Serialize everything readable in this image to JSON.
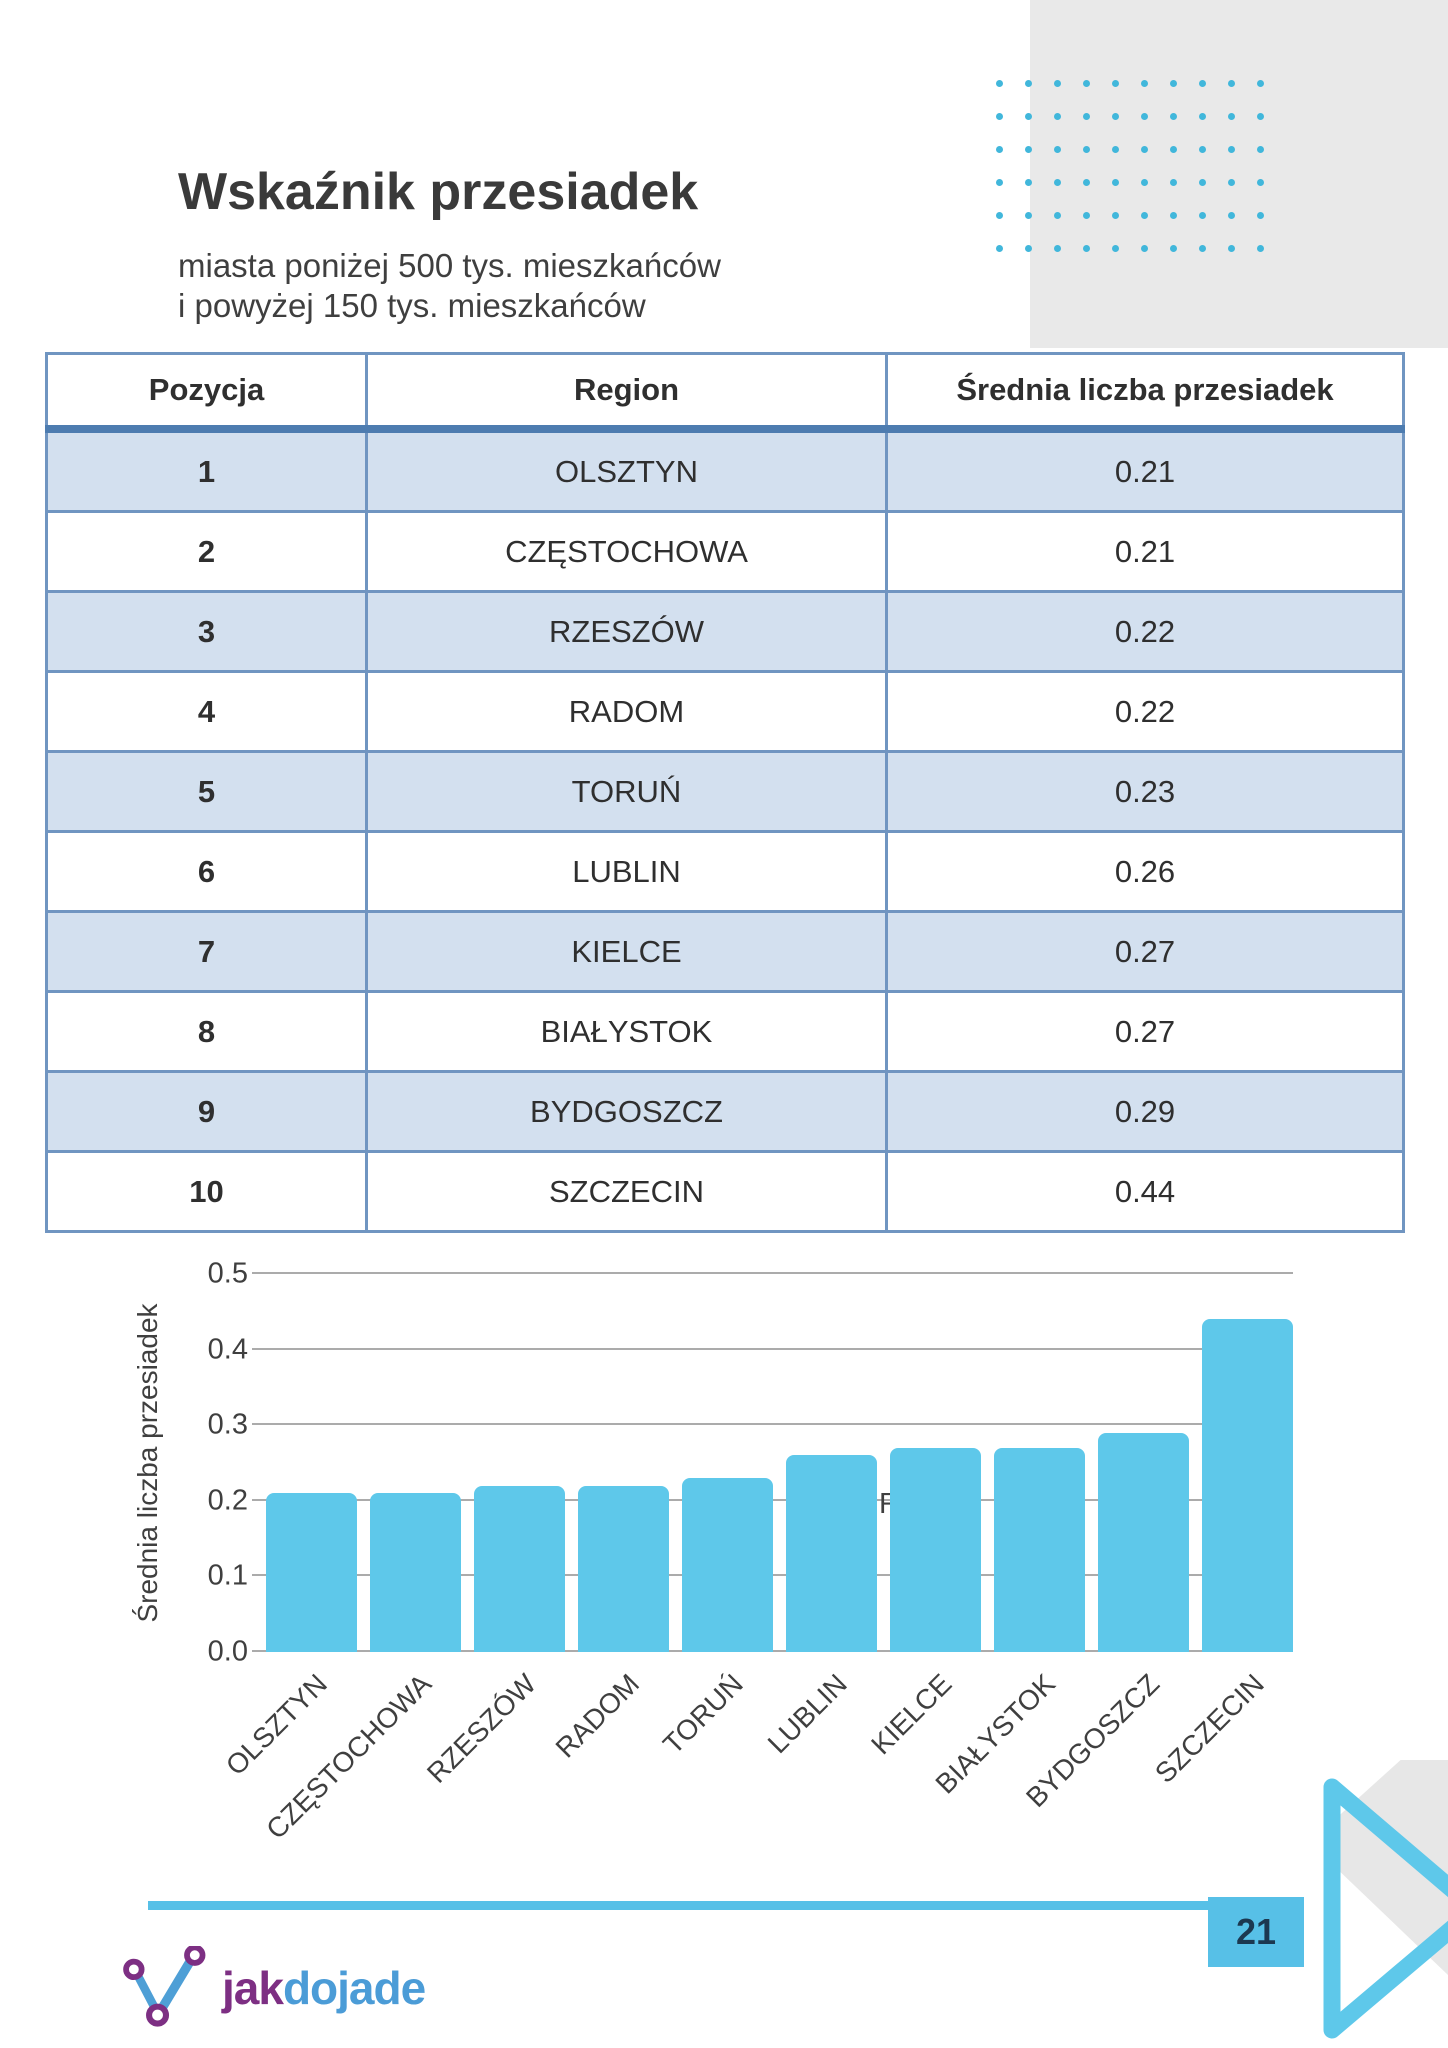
{
  "header": {
    "title": "Wskaźnik przesiadek",
    "subtitle_line1": "miasta poniżej 500 tys. mieszkańców",
    "subtitle_line2": "i powyżej 150 tys. mieszkańców"
  },
  "table": {
    "columns": [
      "Pozycja",
      "Region",
      "Średnia liczba przesiadek"
    ],
    "rows": [
      {
        "pozycja": "1",
        "region": "OLSZTYN",
        "value": "0.21"
      },
      {
        "pozycja": "2",
        "region": "CZĘSTOCHOWA",
        "value": "0.21"
      },
      {
        "pozycja": "3",
        "region": "RZESZÓW",
        "value": "0.22"
      },
      {
        "pozycja": "4",
        "region": "RADOM",
        "value": "0.22"
      },
      {
        "pozycja": "5",
        "region": "TORUŃ",
        "value": "0.23"
      },
      {
        "pozycja": "6",
        "region": "LUBLIN",
        "value": "0.26"
      },
      {
        "pozycja": "7",
        "region": "KIELCE",
        "value": "0.27"
      },
      {
        "pozycja": "8",
        "region": "BIAŁYSTOK",
        "value": "0.27"
      },
      {
        "pozycja": "9",
        "region": "BYDGOSZCZ",
        "value": "0.29"
      },
      {
        "pozycja": "10",
        "region": "SZCZECIN",
        "value": "0.44"
      }
    ]
  },
  "chart_data": {
    "type": "bar",
    "categories": [
      "OLSZTYN",
      "CZĘSTOCHOWA",
      "RZESZÓW",
      "RADOM",
      "TORUŃ",
      "LUBLIN",
      "KIELCE",
      "BIAŁYSTOK",
      "BYDGOSZCZ",
      "SZCZECIN"
    ],
    "values": [
      0.21,
      0.21,
      0.22,
      0.22,
      0.23,
      0.26,
      0.27,
      0.27,
      0.29,
      0.44
    ],
    "title": "",
    "xlabel": "Region",
    "ylabel": "Średnia liczba przesiadek",
    "ylim": [
      0,
      0.5
    ],
    "yticks": [
      "0.0",
      "0.1",
      "0.2",
      "0.3",
      "0.4",
      "0.5"
    ],
    "grid": true,
    "legend": "none",
    "bar_color": "#5ec8ea",
    "gridline_color": "#ababab"
  },
  "footer": {
    "page_number": "21",
    "logo_jak": "jak",
    "logo_dojade": "dojade"
  },
  "colors": {
    "accent_cyan": "#57c0e7",
    "bar_cyan": "#5ec8ea",
    "dots_cyan": "#41b7db",
    "gray_block": "#e9e9e9",
    "table_border": "#7095c1",
    "table_header_border": "#4d7cb0",
    "table_row_alt": "#d3e0ef",
    "page_number_text": "#1c3850",
    "logo_purple": "#7d2f83",
    "logo_blue": "#4b9cd7"
  },
  "decor": {
    "dots_rows": 6,
    "dots_cols": 10
  }
}
